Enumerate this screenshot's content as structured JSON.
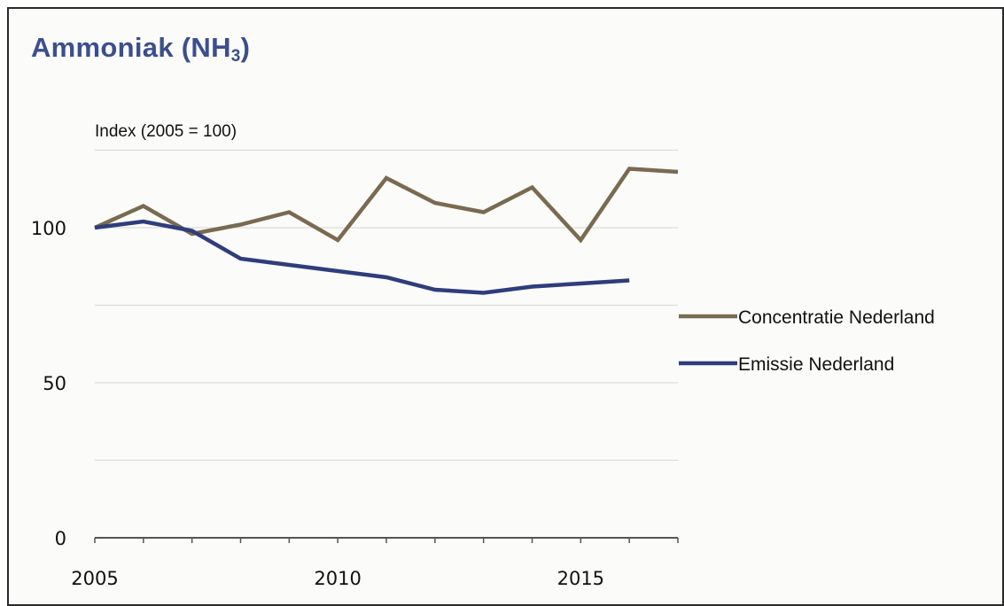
{
  "chart_data": {
    "type": "line",
    "title_main": "Ammoniak  (NH",
    "title_sub": "3",
    "title_close": ")",
    "ylabel": "Index (2005 = 100)",
    "xlabel": "",
    "xlim": [
      2005,
      2017
    ],
    "ylim": [
      0,
      125
    ],
    "x_ticks": [
      "2005",
      "2010",
      "2015"
    ],
    "y_ticks": [
      "0",
      "50",
      "100"
    ],
    "grid": true,
    "legend_position": "right",
    "series": [
      {
        "name": "Concentratie Nederland",
        "color": "#7a6a4f",
        "x": [
          2005,
          2006,
          2007,
          2008,
          2009,
          2010,
          2011,
          2012,
          2013,
          2014,
          2015,
          2016,
          2017
        ],
        "values": [
          100,
          107,
          98,
          101,
          105,
          96,
          116,
          108,
          105,
          113,
          96,
          119,
          118
        ]
      },
      {
        "name": "Emissie Nederland",
        "color": "#2f3d7c",
        "x": [
          2005,
          2006,
          2007,
          2008,
          2009,
          2010,
          2011,
          2012,
          2013,
          2014,
          2015,
          2016
        ],
        "values": [
          100,
          102,
          99,
          90,
          88,
          86,
          84,
          80,
          79,
          81,
          82,
          83
        ]
      }
    ]
  }
}
